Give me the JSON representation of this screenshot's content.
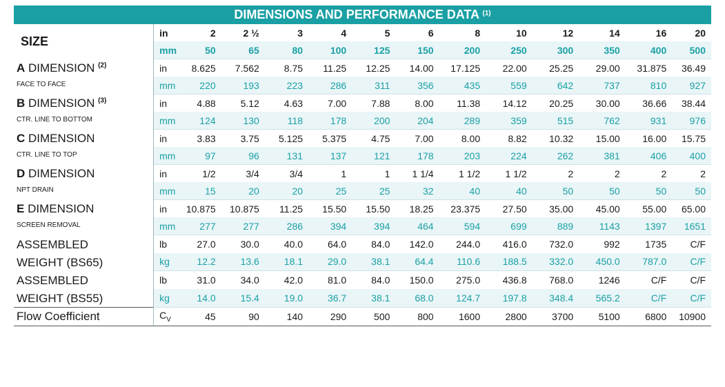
{
  "title": "DIMENSIONS AND PERFORMANCE DATA",
  "title_note": "(1)",
  "size_label": "SIZE",
  "size_in_unit": "in",
  "size_mm_unit": "mm",
  "sizes_in": [
    "2",
    "2 ½",
    "3",
    "4",
    "5",
    "6",
    "8",
    "10",
    "12",
    "14",
    "16",
    "20"
  ],
  "sizes_mm": [
    "50",
    "65",
    "80",
    "100",
    "125",
    "150",
    "200",
    "250",
    "300",
    "350",
    "400",
    "500"
  ],
  "rows": [
    {
      "letter": "A",
      "name": "DIMENSION",
      "note": "(2)",
      "sub": "FACE TO FACE",
      "u1": "in",
      "v1": [
        "8.625",
        "7.562",
        "8.75",
        "11.25",
        "12.25",
        "14.00",
        "17.125",
        "22.00",
        "25.25",
        "29.00",
        "31.875",
        "36.49"
      ],
      "u2": "mm",
      "v2": [
        "220",
        "193",
        "223",
        "286",
        "311",
        "356",
        "435",
        "559",
        "642",
        "737",
        "810",
        "927"
      ]
    },
    {
      "letter": "B",
      "name": "DIMENSION",
      "note": "(3)",
      "sub": "CTR. LINE TO BOTTOM",
      "u1": "in",
      "v1": [
        "4.88",
        "5.12",
        "4.63",
        "7.00",
        "7.88",
        "8.00",
        "11.38",
        "14.12",
        "20.25",
        "30.00",
        "36.66",
        "38.44"
      ],
      "u2": "mm",
      "v2": [
        "124",
        "130",
        "118",
        "178",
        "200",
        "204",
        "289",
        "359",
        "515",
        "762",
        "931",
        "976"
      ]
    },
    {
      "letter": "C",
      "name": "DIMENSION",
      "note": "",
      "sub": "CTR. LINE TO TOP",
      "u1": "in",
      "v1": [
        "3.83",
        "3.75",
        "5.125",
        "5.375",
        "4.75",
        "7.00",
        "8.00",
        "8.82",
        "10.32",
        "15.00",
        "16.00",
        "15.75"
      ],
      "u2": "mm",
      "v2": [
        "97",
        "96",
        "131",
        "137",
        "121",
        "178",
        "203",
        "224",
        "262",
        "381",
        "406",
        "400"
      ]
    },
    {
      "letter": "D",
      "name": "DIMENSION",
      "note": "",
      "sub": "NPT DRAIN",
      "u1": "in",
      "v1": [
        "1/2",
        "3/4",
        "3/4",
        "1",
        "1",
        "1 1/4",
        "1 1/2",
        "1 1/2",
        "2",
        "2",
        "2",
        "2"
      ],
      "u2": "mm",
      "v2": [
        "15",
        "20",
        "20",
        "25",
        "25",
        "32",
        "40",
        "40",
        "50",
        "50",
        "50",
        "50"
      ]
    },
    {
      "letter": "E",
      "name": "DIMENSION",
      "note": "",
      "sub": "SCREEN REMOVAL",
      "u1": "in",
      "v1": [
        "10.875",
        "10.875",
        "11.25",
        "15.50",
        "15.50",
        "18.25",
        "23.375",
        "27.50",
        "35.00",
        "45.00",
        "55.00",
        "65.00"
      ],
      "u2": "mm",
      "v2": [
        "277",
        "277",
        "286",
        "394",
        "394",
        "464",
        "594",
        "699",
        "889",
        "1143",
        "1397",
        "1651"
      ]
    }
  ],
  "weights": [
    {
      "line1": "ASSEMBLED",
      "line2": "WEIGHT (BS65)",
      "u1": "lb",
      "v1": [
        "27.0",
        "30.0",
        "40.0",
        "64.0",
        "84.0",
        "142.0",
        "244.0",
        "416.0",
        "732.0",
        "992",
        "1735",
        "C/F"
      ],
      "u2": "kg",
      "v2": [
        "12.2",
        "13.6",
        "18.1",
        "29.0",
        "38.1",
        "64.4",
        "110.6",
        "188.5",
        "332.0",
        "450.0",
        "787.0",
        "C/F"
      ]
    },
    {
      "line1": "ASSEMBLED",
      "line2": "WEIGHT (BS55)",
      "u1": "lb",
      "v1": [
        "31.0",
        "34.0",
        "42.0",
        "81.0",
        "84.0",
        "150.0",
        "275.0",
        "436.8",
        "768.0",
        "1246",
        "C/F",
        "C/F"
      ],
      "u2": "kg",
      "v2": [
        "14.0",
        "15.4",
        "19.0",
        "36.7",
        "38.1",
        "68.0",
        "124.7",
        "197.8",
        "348.4",
        "565.2",
        "C/F",
        "C/F"
      ]
    }
  ],
  "flow": {
    "label": "Flow Coefficient",
    "unit": "C",
    "unit_sub": "V",
    "values": [
      "45",
      "90",
      "140",
      "290",
      "500",
      "800",
      "1600",
      "2800",
      "3700",
      "5100",
      "6800",
      "10900"
    ]
  },
  "colors": {
    "accent": "#1aa0a4",
    "header_bg": "#d8eef1",
    "alt_bg": "#e9f5f7"
  }
}
